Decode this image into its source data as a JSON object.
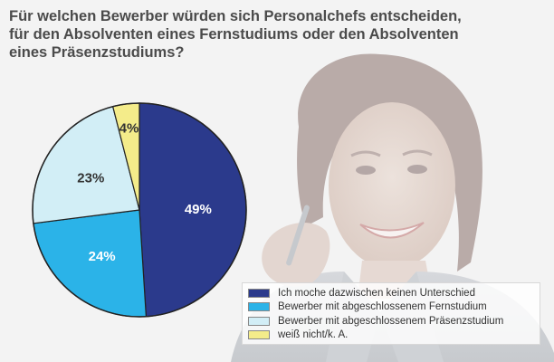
{
  "chart_data": {
    "type": "pie",
    "title": "Für welchen Bewerber würden sich Personalchefs entscheiden, für den Absolventen eines Fernstudiums oder den Absolventen eines Präsenzstudiums?",
    "title_lines": [
      "Für welchen Bewerber würden sich Personalchefs entscheiden,",
      "für den Absolventen eines Fernstudiums oder den Absolventen",
      "eines Präsenzstudiums?"
    ],
    "slices": [
      {
        "label": "Ich moche dazwischen keinen Unterschied",
        "value": 49,
        "display": "49%",
        "color": "#2b3a8c",
        "text_color": "#ffffff"
      },
      {
        "label": "Bewerber mit abgeschlossenem Fernstudium",
        "value": 24,
        "display": "24%",
        "color": "#2bb3e8",
        "text_color": "#ffffff"
      },
      {
        "label": "Bewerber mit abgeschlossenem Präsenzstudium",
        "value": 23,
        "display": "23%",
        "color": "#d2eef6",
        "text_color": "#333333"
      },
      {
        "label": "weiß nicht/k. A.",
        "value": 4,
        "display": "4%",
        "color": "#f4ec8a",
        "text_color": "#333333"
      }
    ],
    "start": "12 o'clock",
    "direction": "clockwise",
    "legend_position": "bottom-right"
  }
}
